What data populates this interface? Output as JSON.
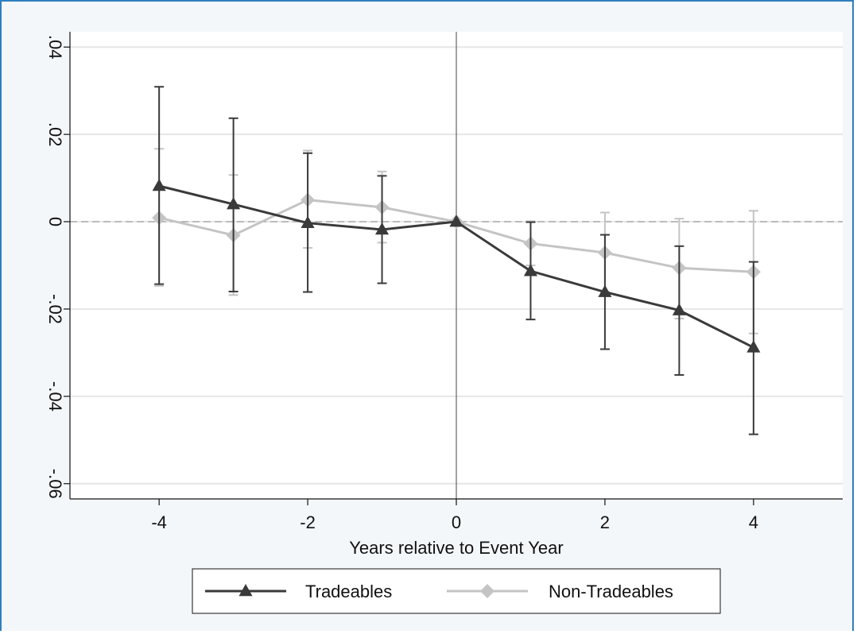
{
  "chart_data": {
    "type": "line",
    "xlabel": "Years relative to Event Year",
    "ylabel": "",
    "xlim": [
      -5.2,
      5.2
    ],
    "ylim": [
      -0.0635,
      0.0435
    ],
    "x_ticks": [
      -4,
      -2,
      0,
      2,
      4
    ],
    "x_tick_labels": [
      "-4",
      "-2",
      "0",
      "2",
      "4"
    ],
    "y_ticks": [
      -0.06,
      -0.04,
      -0.02,
      0,
      0.02,
      0.04
    ],
    "y_tick_labels": [
      "-.06",
      "-.04",
      "-.02",
      "0",
      ".02",
      ".04"
    ],
    "grid": true,
    "reference_lines": {
      "x": 0,
      "y": 0
    },
    "legend_position": "bottom",
    "series": [
      {
        "name": "Tradeables",
        "color": "#3a3a3a",
        "marker": "triangle",
        "x": [
          -4,
          -3,
          -2,
          -1,
          0,
          1,
          2,
          3,
          4
        ],
        "y": [
          0.0082,
          0.004,
          -0.0003,
          -0.0018,
          0.0,
          -0.0113,
          -0.0161,
          -0.0203,
          -0.0288
        ],
        "ci_low": [
          -0.0143,
          -0.016,
          -0.0161,
          -0.0141,
          0.0,
          -0.0224,
          -0.0292,
          -0.0351,
          -0.0487
        ],
        "ci_high": [
          0.0309,
          0.0237,
          0.0157,
          0.0105,
          0.0,
          -0.0001,
          -0.003,
          -0.0056,
          -0.0092
        ]
      },
      {
        "name": "Non-Tradeables",
        "color": "#c4c4c4",
        "marker": "diamond",
        "x": [
          -4,
          -3,
          -2,
          -1,
          0,
          1,
          2,
          3,
          4
        ],
        "y": [
          0.0009,
          -0.0031,
          0.005,
          0.0033,
          0.0,
          -0.005,
          -0.0071,
          -0.0106,
          -0.0115
        ],
        "ci_low": [
          -0.0147,
          -0.0168,
          -0.006,
          -0.0048,
          0.0,
          -0.01,
          -0.016,
          -0.0222,
          -0.0256
        ],
        "ci_high": [
          0.0167,
          0.0107,
          0.0163,
          0.0115,
          0.0,
          0.0001,
          0.0021,
          0.0007,
          0.0025
        ]
      }
    ]
  }
}
